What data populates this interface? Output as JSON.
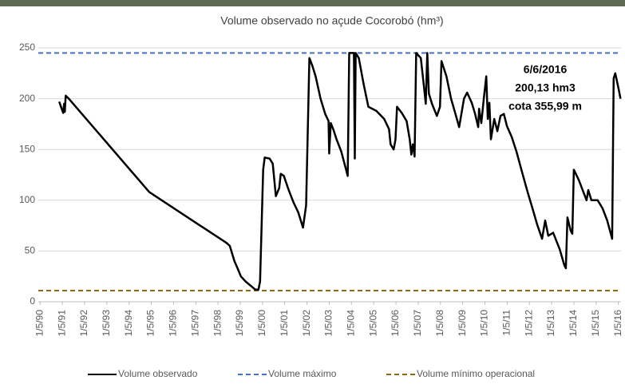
{
  "chart_data": {
    "type": "line",
    "title": "Volume observado no açude Cocorobó (hm³)",
    "x": [
      1991.19,
      1991.3,
      1991.37,
      1991.41,
      1991.44,
      1991.48,
      1991.62,
      1995.24,
      1998.71,
      1998.86,
      1999.07,
      1999.21,
      1999.36,
      1999.57,
      1999.79,
      2000.0,
      2000.15,
      2000.22,
      2000.36,
      2000.43,
      2000.65,
      2000.79,
      2000.93,
      2001.08,
      2001.15,
      2001.29,
      2001.51,
      2001.72,
      2001.94,
      2002.15,
      2002.29,
      2002.44,
      2002.58,
      2002.72,
      2002.94,
      2003.15,
      2003.3,
      2003.33,
      2003.4,
      2003.51,
      2003.66,
      2003.87,
      2004.09,
      2004.16,
      2004.23,
      2004.44,
      2004.48,
      2004.52,
      2004.66,
      2004.87,
      2005.09,
      2005.45,
      2005.8,
      2006.02,
      2006.09,
      2006.23,
      2006.31,
      2006.38,
      2006.59,
      2006.81,
      2006.95,
      2007.02,
      2007.09,
      2007.17,
      2007.24,
      2007.45,
      2007.6,
      2007.67,
      2007.74,
      2007.81,
      2007.95,
      2008.17,
      2008.31,
      2008.38,
      2008.6,
      2008.81,
      2009.03,
      2009.17,
      2009.39,
      2009.53,
      2009.74,
      2009.89,
      2010.03,
      2010.07,
      2010.17,
      2010.28,
      2010.39,
      2010.46,
      2010.53,
      2010.6,
      2010.75,
      2010.89,
      2011.03,
      2011.18,
      2011.32,
      2011.54,
      2011.75,
      2011.97,
      2012.25,
      2012.47,
      2012.68,
      2012.9,
      2013.04,
      2013.18,
      2013.4,
      2013.69,
      2013.9,
      2013.97,
      2014.04,
      2014.19,
      2014.26,
      2014.33,
      2014.55,
      2014.76,
      2014.9,
      2014.98,
      2015.12,
      2015.4,
      2015.62,
      2015.83,
      2016.05,
      2016.12,
      2016.19,
      2016.34,
      2016.43
    ],
    "series": [
      {
        "name": "Volume observado",
        "color": "#000000",
        "values": [
          197,
          190,
          186,
          195,
          187,
          203,
          200,
          108,
          58,
          55,
          40,
          33,
          25,
          20,
          16,
          12,
          12,
          20,
          130,
          142,
          141,
          136,
          104,
          112,
          126,
          124,
          110,
          98,
          88,
          73,
          95,
          240,
          232,
          222,
          200,
          185,
          178,
          146,
          176,
          170,
          160,
          148,
          130,
          124,
          245,
          245,
          141,
          245,
          240,
          215,
          192,
          188,
          180,
          170,
          155,
          150,
          160,
          192,
          186,
          178,
          160,
          145,
          155,
          143,
          245,
          240,
          210,
          195,
          245,
          205,
          195,
          183,
          192,
          237,
          222,
          200,
          183,
          172,
          200,
          206,
          196,
          185,
          172,
          190,
          176,
          200,
          222,
          180,
          196,
          160,
          180,
          168,
          183,
          185,
          173,
          162,
          148,
          130,
          108,
          92,
          76,
          62,
          80,
          65,
          68,
          52,
          36,
          33,
          83,
          70,
          67,
          130,
          120,
          108,
          100,
          110,
          100,
          100,
          92,
          80,
          62,
          220,
          225,
          210,
          200
        ]
      }
    ],
    "reference_lines": [
      {
        "name": "Volume máximo",
        "color": "#4472c4",
        "value": 245,
        "dashed": true
      },
      {
        "name": "Volume mínimo operacional",
        "color": "#8c6a14",
        "value": 11,
        "dashed": true
      }
    ],
    "annotation": [
      "6/6/2016",
      "200,13 hm3",
      "cota 355,99 m"
    ],
    "xlim": [
      1990.25,
      2016.45
    ],
    "xticks": [
      {
        "value": 1990.33,
        "label": "1/5/90"
      },
      {
        "value": 1991.33,
        "label": "1/5/91"
      },
      {
        "value": 1992.33,
        "label": "1/5/92"
      },
      {
        "value": 1993.33,
        "label": "1/5/93"
      },
      {
        "value": 1994.33,
        "label": "1/5/94"
      },
      {
        "value": 1995.33,
        "label": "1/5/95"
      },
      {
        "value": 1996.33,
        "label": "1/5/96"
      },
      {
        "value": 1997.33,
        "label": "1/5/97"
      },
      {
        "value": 1998.33,
        "label": "1/5/98"
      },
      {
        "value": 1999.33,
        "label": "1/5/99"
      },
      {
        "value": 2000.33,
        "label": "1/5/00"
      },
      {
        "value": 2001.33,
        "label": "1/5/01"
      },
      {
        "value": 2002.33,
        "label": "1/5/02"
      },
      {
        "value": 2003.33,
        "label": "1/5/03"
      },
      {
        "value": 2004.33,
        "label": "1/5/04"
      },
      {
        "value": 2005.33,
        "label": "1/5/05"
      },
      {
        "value": 2006.33,
        "label": "1/5/06"
      },
      {
        "value": 2007.33,
        "label": "1/5/07"
      },
      {
        "value": 2008.33,
        "label": "1/5/08"
      },
      {
        "value": 2009.33,
        "label": "1/5/09"
      },
      {
        "value": 2010.33,
        "label": "1/5/10"
      },
      {
        "value": 2011.33,
        "label": "1/5/11"
      },
      {
        "value": 2012.33,
        "label": "1/5/12"
      },
      {
        "value": 2013.33,
        "label": "1/5/13"
      },
      {
        "value": 2014.33,
        "label": "1/5/14"
      },
      {
        "value": 2015.33,
        "label": "1/5/15"
      },
      {
        "value": 2016.33,
        "label": "1/5/16"
      }
    ],
    "ylim": [
      0,
      250
    ],
    "yticks": [
      0,
      50,
      100,
      150,
      200,
      250
    ],
    "grid": true
  }
}
